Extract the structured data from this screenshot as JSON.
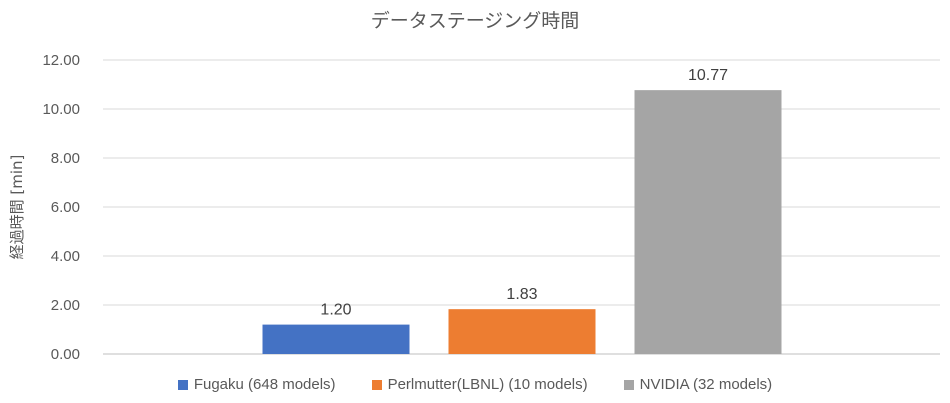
{
  "chart_data": {
    "type": "bar",
    "title": "データステージング時間",
    "xlabel": "",
    "ylabel": "経過時間 [min]",
    "ylim": [
      0,
      12
    ],
    "yticks": [
      "0.00",
      "2.00",
      "4.00",
      "6.00",
      "8.00",
      "10.00",
      "12.00"
    ],
    "grid": true,
    "legend_position": "bottom",
    "series": [
      {
        "name": "Fugaku (648 models)",
        "value": 1.2,
        "label": "1.20",
        "color": "#4472C4"
      },
      {
        "name": "Perlmutter(LBNL) (10 models)",
        "value": 1.83,
        "label": "1.83",
        "color": "#ED7D31"
      },
      {
        "name": "NVIDIA (32 models)",
        "value": 10.77,
        "label": "10.77",
        "color": "#A5A5A5"
      }
    ]
  }
}
